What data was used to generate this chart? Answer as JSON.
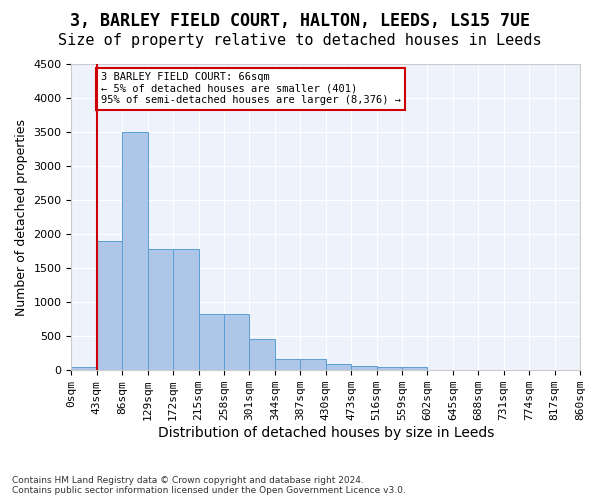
{
  "title": "3, BARLEY FIELD COURT, HALTON, LEEDS, LS15 7UE",
  "subtitle": "Size of property relative to detached houses in Leeds",
  "xlabel": "Distribution of detached houses by size in Leeds",
  "ylabel": "Number of detached properties",
  "bar_values": [
    50,
    1900,
    3500,
    1780,
    1780,
    830,
    830,
    460,
    160,
    160,
    90,
    60,
    50,
    50,
    0,
    0,
    0,
    0,
    0,
    0
  ],
  "bin_labels": [
    "0sqm",
    "43sqm",
    "86sqm",
    "129sqm",
    "172sqm",
    "215sqm",
    "258sqm",
    "301sqm",
    "344sqm",
    "387sqm",
    "430sqm",
    "473sqm",
    "516sqm",
    "559sqm",
    "602sqm",
    "645sqm",
    "688sqm",
    "731sqm",
    "774sqm",
    "817sqm",
    "860sqm"
  ],
  "bar_color": "#aec6e8",
  "bar_edge_color": "#5a9fd4",
  "bg_color": "#eef2fb",
  "grid_color": "#ffffff",
  "vline_x": 1,
  "vline_color": "#cc0000",
  "annotation_text": "3 BARLEY FIELD COURT: 66sqm\n← 5% of detached houses are smaller (401)\n95% of semi-detached houses are larger (8,376) →",
  "annotation_box_color": "#cc0000",
  "ylim": [
    0,
    4500
  ],
  "yticks": [
    0,
    500,
    1000,
    1500,
    2000,
    2500,
    3000,
    3500,
    4000,
    4500
  ],
  "footnote": "Contains HM Land Registry data © Crown copyright and database right 2024.\nContains public sector information licensed under the Open Government Licence v3.0.",
  "title_fontsize": 12,
  "subtitle_fontsize": 11,
  "xlabel_fontsize": 10,
  "ylabel_fontsize": 9,
  "tick_fontsize": 8
}
